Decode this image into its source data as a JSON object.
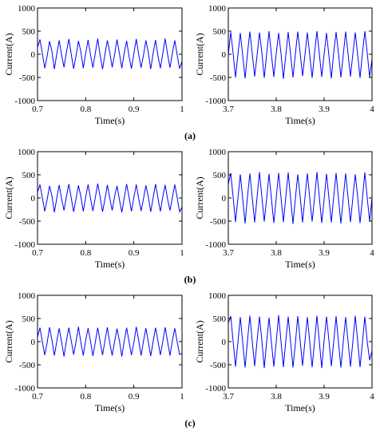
{
  "chart_data": [
    {
      "type": "line",
      "xlabel": "Time(s)",
      "ylabel": "Current(A)",
      "color": "#0000ff",
      "xlim": [
        0.7,
        1
      ],
      "ylim": [
        -1000,
        1000
      ],
      "xticks": [
        0.7,
        0.8,
        0.9,
        1
      ],
      "yticks": [
        -1000,
        -500,
        0,
        500,
        1000
      ],
      "x": [
        0.7,
        0.705,
        0.71,
        0.715,
        0.72,
        0.725,
        0.73,
        0.735,
        0.74,
        0.745,
        0.75,
        0.755,
        0.76,
        0.765,
        0.77,
        0.775,
        0.78,
        0.785,
        0.79,
        0.795,
        0.8,
        0.805,
        0.81,
        0.815,
        0.82,
        0.825,
        0.83,
        0.835,
        0.84,
        0.845,
        0.85,
        0.855,
        0.86,
        0.865,
        0.87,
        0.875,
        0.88,
        0.885,
        0.89,
        0.895,
        0.9,
        0.905,
        0.91,
        0.915,
        0.92,
        0.925,
        0.93,
        0.935,
        0.94,
        0.945,
        0.95,
        0.955,
        0.96,
        0.965,
        0.97,
        0.975,
        0.98,
        0.985,
        0.99,
        0.995,
        1
      ],
      "values": [
        150,
        320,
        20,
        -300,
        -40,
        280,
        60,
        -320,
        10,
        300,
        -20,
        -280,
        40,
        330,
        0,
        -310,
        -30,
        290,
        50,
        -300,
        20,
        310,
        -10,
        -290,
        30,
        340,
        -20,
        -320,
        0,
        300,
        40,
        -280,
        -10,
        320,
        20,
        -300,
        30,
        290,
        -40,
        -310,
        10,
        330,
        0,
        -290,
        -20,
        300,
        40,
        -320,
        20,
        310,
        -30,
        -300,
        10,
        340,
        0,
        -290,
        30,
        300,
        -20,
        -310,
        -150
      ]
    },
    {
      "type": "line",
      "xlabel": "Time(s)",
      "ylabel": "Current(A)",
      "color": "#0000ff",
      "xlim": [
        3.7,
        4
      ],
      "ylim": [
        -1000,
        1000
      ],
      "xticks": [
        3.7,
        3.8,
        3.9,
        4
      ],
      "yticks": [
        -1000,
        -500,
        0,
        500,
        1000
      ],
      "x": [
        3.7,
        3.705,
        3.71,
        3.715,
        3.72,
        3.725,
        3.73,
        3.735,
        3.74,
        3.745,
        3.75,
        3.755,
        3.76,
        3.765,
        3.77,
        3.775,
        3.78,
        3.785,
        3.79,
        3.795,
        3.8,
        3.805,
        3.81,
        3.815,
        3.82,
        3.825,
        3.83,
        3.835,
        3.84,
        3.845,
        3.85,
        3.855,
        3.86,
        3.865,
        3.87,
        3.875,
        3.88,
        3.885,
        3.89,
        3.895,
        3.9,
        3.905,
        3.91,
        3.915,
        3.92,
        3.925,
        3.93,
        3.935,
        3.94,
        3.945,
        3.95,
        3.955,
        3.96,
        3.965,
        3.97,
        3.975,
        3.98,
        3.985,
        3.99,
        3.995,
        4
      ],
      "values": [
        0,
        480,
        30,
        -500,
        -10,
        460,
        -20,
        -520,
        20,
        490,
        10,
        -480,
        -30,
        470,
        40,
        -510,
        0,
        500,
        -10,
        -490,
        20,
        460,
        20,
        -530,
        -20,
        480,
        0,
        -500,
        10,
        490,
        30,
        -470,
        -10,
        470,
        -20,
        -510,
        20,
        500,
        10,
        -490,
        0,
        460,
        -30,
        -520,
        30,
        480,
        20,
        -500,
        -10,
        490,
        0,
        -480,
        10,
        470,
        -10,
        -510,
        20,
        500,
        30,
        -490,
        -100
      ]
    },
    {
      "type": "line",
      "xlabel": "Time(s)",
      "ylabel": "Current(A)",
      "color": "#0000ff",
      "xlim": [
        0.7,
        1
      ],
      "ylim": [
        -1000,
        1000
      ],
      "xticks": [
        0.7,
        0.8,
        0.9,
        1
      ],
      "yticks": [
        -1000,
        -500,
        0,
        500,
        1000
      ],
      "x": [
        0.7,
        0.705,
        0.71,
        0.715,
        0.72,
        0.725,
        0.73,
        0.735,
        0.74,
        0.745,
        0.75,
        0.755,
        0.76,
        0.765,
        0.77,
        0.775,
        0.78,
        0.785,
        0.79,
        0.795,
        0.8,
        0.805,
        0.81,
        0.815,
        0.82,
        0.825,
        0.83,
        0.835,
        0.84,
        0.845,
        0.85,
        0.855,
        0.86,
        0.865,
        0.87,
        0.875,
        0.88,
        0.885,
        0.89,
        0.895,
        0.9,
        0.905,
        0.91,
        0.915,
        0.92,
        0.925,
        0.93,
        0.935,
        0.94,
        0.945,
        0.95,
        0.955,
        0.96,
        0.965,
        0.97,
        0.975,
        0.98,
        0.985,
        0.99,
        0.995,
        1
      ],
      "values": [
        120,
        290,
        10,
        -290,
        -30,
        260,
        40,
        -310,
        0,
        280,
        -20,
        -270,
        30,
        300,
        0,
        -300,
        -10,
        270,
        30,
        -290,
        20,
        290,
        -10,
        -280,
        10,
        310,
        20,
        -300,
        -20,
        280,
        0,
        -270,
        30,
        260,
        -30,
        -310,
        0,
        300,
        20,
        -290,
        10,
        290,
        -10,
        -280,
        -20,
        270,
        30,
        -300,
        0,
        300,
        0,
        -290,
        20,
        280,
        -20,
        -270,
        10,
        290,
        10,
        -300,
        -200
      ]
    },
    {
      "type": "line",
      "xlabel": "Time(s)",
      "ylabel": "Current(A)",
      "color": "#0000ff",
      "xlim": [
        3.7,
        4
      ],
      "ylim": [
        -1000,
        1000
      ],
      "xticks": [
        3.7,
        3.8,
        3.9,
        4
      ],
      "yticks": [
        -1000,
        -500,
        0,
        500,
        1000
      ],
      "x": [
        3.7,
        3.705,
        3.71,
        3.715,
        3.72,
        3.725,
        3.73,
        3.735,
        3.74,
        3.745,
        3.75,
        3.755,
        3.76,
        3.765,
        3.77,
        3.775,
        3.78,
        3.785,
        3.79,
        3.795,
        3.8,
        3.805,
        3.81,
        3.815,
        3.82,
        3.825,
        3.83,
        3.835,
        3.84,
        3.845,
        3.85,
        3.855,
        3.86,
        3.865,
        3.87,
        3.875,
        3.88,
        3.885,
        3.89,
        3.895,
        3.9,
        3.905,
        3.91,
        3.915,
        3.92,
        3.925,
        3.93,
        3.935,
        3.94,
        3.945,
        3.95,
        3.955,
        3.96,
        3.965,
        3.97,
        3.975,
        3.98,
        3.985,
        3.99,
        3.995,
        4
      ],
      "values": [
        300,
        540,
        20,
        -520,
        -10,
        510,
        -10,
        -550,
        30,
        530,
        0,
        -530,
        10,
        560,
        30,
        -510,
        -20,
        520,
        -20,
        -540,
        0,
        540,
        10,
        -520,
        20,
        550,
        0,
        -560,
        -10,
        510,
        30,
        -530,
        10,
        530,
        -10,
        -510,
        0,
        560,
        20,
        -540,
        -30,
        520,
        0,
        -530,
        20,
        540,
        -20,
        -550,
        10,
        530,
        10,
        -520,
        0,
        510,
        30,
        -540,
        -10,
        550,
        0,
        -500,
        0
      ]
    },
    {
      "type": "line",
      "xlabel": "Time(s)",
      "ylabel": "Current(A)",
      "color": "#0000ff",
      "xlim": [
        0.7,
        1
      ],
      "ylim": [
        -1000,
        1000
      ],
      "xticks": [
        0.7,
        0.8,
        0.9,
        1
      ],
      "yticks": [
        -1000,
        -500,
        0,
        500,
        1000
      ],
      "x": [
        0.7,
        0.705,
        0.71,
        0.715,
        0.72,
        0.725,
        0.73,
        0.735,
        0.74,
        0.745,
        0.75,
        0.755,
        0.76,
        0.765,
        0.77,
        0.775,
        0.78,
        0.785,
        0.79,
        0.795,
        0.8,
        0.805,
        0.81,
        0.815,
        0.82,
        0.825,
        0.83,
        0.835,
        0.84,
        0.845,
        0.85,
        0.855,
        0.86,
        0.865,
        0.87,
        0.875,
        0.88,
        0.885,
        0.89,
        0.895,
        0.9,
        0.905,
        0.91,
        0.915,
        0.92,
        0.925,
        0.93,
        0.935,
        0.94,
        0.945,
        0.95,
        0.955,
        0.96,
        0.965,
        0.97,
        0.975,
        0.98,
        0.985,
        0.99,
        0.995,
        1
      ],
      "values": [
        100,
        300,
        0,
        -290,
        -20,
        310,
        30,
        -300,
        10,
        290,
        -10,
        -320,
        20,
        300,
        20,
        -280,
        0,
        320,
        -20,
        -300,
        30,
        290,
        10,
        -310,
        -10,
        300,
        0,
        -290,
        20,
        310,
        -30,
        -300,
        0,
        280,
        20,
        -320,
        10,
        300,
        0,
        -290,
        -20,
        320,
        30,
        -300,
        10,
        290,
        -10,
        -310,
        0,
        300,
        20,
        -290,
        -10,
        310,
        0,
        -300,
        20,
        290,
        -10,
        -280,
        -250
      ]
    },
    {
      "type": "line",
      "xlabel": "Time(s)",
      "ylabel": "Current(A)",
      "color": "#0000ff",
      "xlim": [
        3.7,
        4
      ],
      "ylim": [
        -1000,
        1000
      ],
      "xticks": [
        3.7,
        3.8,
        3.9,
        4
      ],
      "yticks": [
        -1000,
        -500,
        0,
        500,
        1000
      ],
      "x": [
        3.7,
        3.705,
        3.71,
        3.715,
        3.72,
        3.725,
        3.73,
        3.735,
        3.74,
        3.745,
        3.75,
        3.755,
        3.76,
        3.765,
        3.77,
        3.775,
        3.78,
        3.785,
        3.79,
        3.795,
        3.8,
        3.805,
        3.81,
        3.815,
        3.82,
        3.825,
        3.83,
        3.835,
        3.84,
        3.845,
        3.85,
        3.855,
        3.86,
        3.865,
        3.87,
        3.875,
        3.88,
        3.885,
        3.89,
        3.895,
        3.9,
        3.905,
        3.91,
        3.915,
        3.92,
        3.925,
        3.93,
        3.935,
        3.94,
        3.945,
        3.95,
        3.955,
        3.96,
        3.965,
        3.97,
        3.975,
        3.98,
        3.985,
        3.99,
        3.995,
        4
      ],
      "values": [
        400,
        550,
        10,
        -540,
        -20,
        530,
        -10,
        -560,
        20,
        560,
        0,
        -530,
        10,
        540,
        30,
        -570,
        -10,
        520,
        -20,
        -540,
        0,
        570,
        10,
        -550,
        20,
        540,
        0,
        -560,
        -30,
        550,
        20,
        -520,
        10,
        530,
        -10,
        -550,
        0,
        560,
        0,
        -570,
        20,
        540,
        30,
        -530,
        -10,
        550,
        -20,
        -560,
        10,
        530,
        0,
        -540,
        0,
        560,
        10,
        -550,
        -20,
        540,
        0,
        -400,
        -200
      ]
    }
  ],
  "captions": [
    "(a)",
    "(b)",
    "(c)"
  ]
}
